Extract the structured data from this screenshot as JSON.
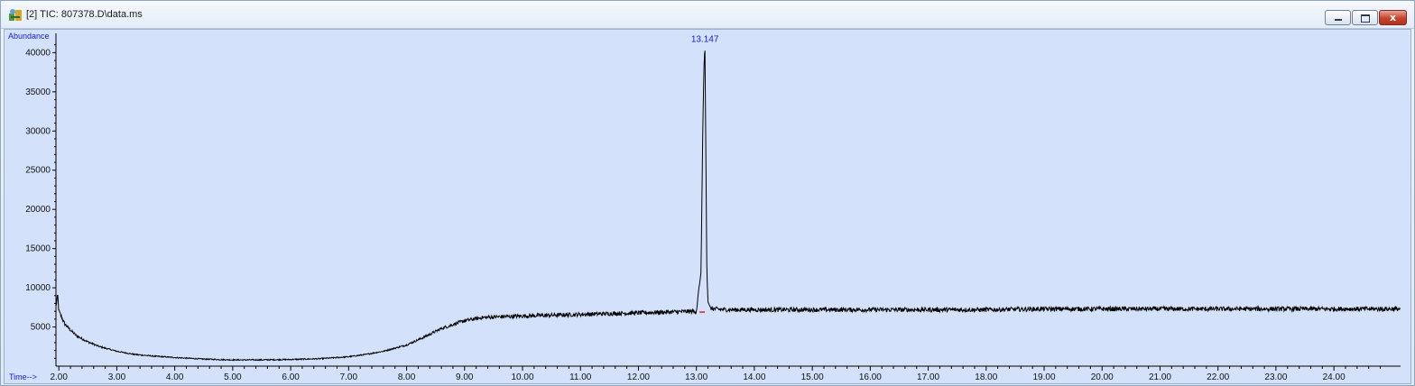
{
  "window": {
    "title": "[2] TIC: 807378.D\\data.ms",
    "app_icon": "instrument-icon",
    "buttons": {
      "minimize": "minimize-icon",
      "maximize": "maximize-icon",
      "close": "close-icon",
      "close_glyph": "x"
    }
  },
  "colors": {
    "plot_bg": "#d3e2fa",
    "trace": "#000000",
    "axis_text": "#1a1ad8",
    "marker": "#d02020"
  },
  "chart_data": {
    "type": "line",
    "ylabel": "Abundance",
    "xlabel": "Time-->",
    "xlim": [
      1.95,
      25.15
    ],
    "ylim": [
      0,
      42000
    ],
    "x_ticks": [
      "2.00",
      "3.00",
      "4.00",
      "5.00",
      "6.00",
      "7.00",
      "8.00",
      "9.00",
      "10.00",
      "11.00",
      "12.00",
      "13.00",
      "14.00",
      "15.00",
      "16.00",
      "17.00",
      "18.00",
      "19.00",
      "20.00",
      "21.00",
      "22.00",
      "23.00",
      "24.00"
    ],
    "y_ticks": [
      "5000",
      "10000",
      "15000",
      "20000",
      "25000",
      "30000",
      "35000",
      "40000"
    ],
    "peak": {
      "label": "13.147",
      "time": 13.147,
      "abundance": 41000
    },
    "series": [
      {
        "x": [
          1.95,
          1.98,
          2.0,
          2.05,
          2.1,
          2.2,
          2.3,
          2.5,
          2.7,
          3.0,
          3.3,
          3.6,
          4.0,
          4.5,
          5.0,
          5.5,
          6.0,
          6.5,
          7.0,
          7.3,
          7.6,
          8.0,
          8.3,
          8.6,
          9.0,
          9.3,
          9.6,
          10.0,
          10.5,
          11.0,
          11.5,
          12.0,
          12.5,
          13.0,
          13.08,
          13.11,
          13.13,
          13.147,
          13.16,
          13.18,
          13.2,
          13.25,
          13.3,
          13.5,
          14.0,
          15.0,
          16.0,
          17.0,
          18.0,
          19.0,
          20.0,
          21.0,
          22.0,
          23.0,
          24.0,
          25.0,
          25.15
        ],
        "y": [
          7600,
          9000,
          7000,
          6200,
          5400,
          4600,
          3900,
          3100,
          2500,
          1900,
          1500,
          1300,
          1100,
          900,
          800,
          800,
          850,
          950,
          1200,
          1500,
          1900,
          2700,
          3700,
          4800,
          5800,
          6200,
          6300,
          6400,
          6500,
          6600,
          6700,
          6800,
          6900,
          7000,
          12000,
          30000,
          38000,
          41000,
          30000,
          12000,
          8200,
          7400,
          7300,
          7200,
          7200,
          7200,
          7200,
          7200,
          7200,
          7300,
          7300,
          7300,
          7300,
          7300,
          7300,
          7300,
          7300
        ]
      }
    ],
    "markers": [
      {
        "time": 13.1,
        "abundance": 6900
      }
    ]
  }
}
